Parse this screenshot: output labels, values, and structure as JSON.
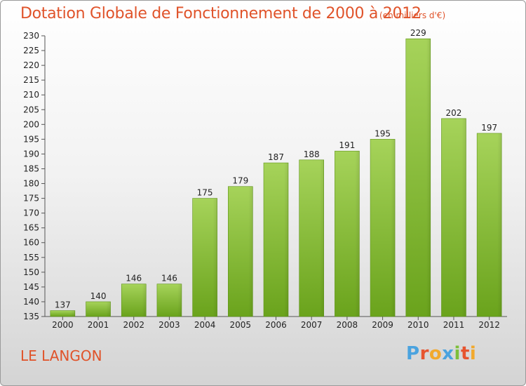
{
  "header": {
    "title": "Dotation Globale de Fonctionnement de 2000 à 2012",
    "unit": "(en milliers d'€)"
  },
  "footer": {
    "place": "LE LANGON",
    "logo": "Proxiti"
  },
  "colors": {
    "text_accent": "#e0532a",
    "bar_light": "#a6d35a",
    "bar_dark": "#6aa31c",
    "logo": [
      "#4aa3df",
      "#e7542f",
      "#f2a92d",
      "#4aa3df",
      "#7cbf3a",
      "#e7542f",
      "#f2a92d"
    ]
  },
  "chart_data": {
    "type": "bar",
    "categories": [
      "2000",
      "2001",
      "2002",
      "2003",
      "2004",
      "2005",
      "2006",
      "2007",
      "2008",
      "2009",
      "2010",
      "2011",
      "2012"
    ],
    "values": [
      137,
      140,
      146,
      146,
      175,
      179,
      187,
      188,
      191,
      195,
      229,
      202,
      197
    ],
    "title": "Dotation Globale de Fonctionnement de 2000 à 2012",
    "ylabel": "",
    "xlabel": "",
    "ylim": [
      135,
      230
    ],
    "yticks": [
      135,
      140,
      145,
      150,
      155,
      160,
      165,
      170,
      175,
      180,
      185,
      190,
      195,
      200,
      205,
      210,
      215,
      220,
      225,
      230
    ],
    "grid": false
  }
}
